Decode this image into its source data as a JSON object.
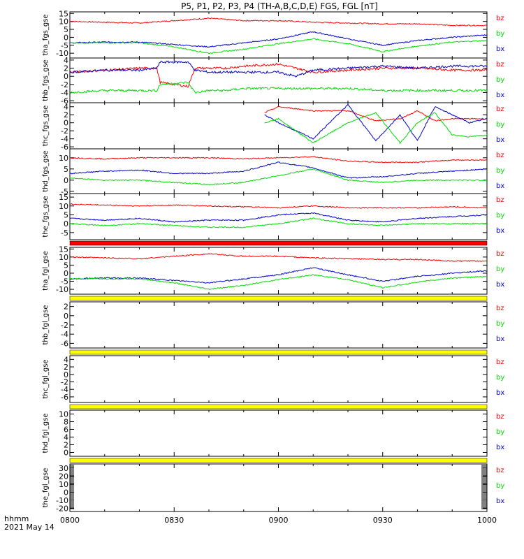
{
  "title": "P5, P1, P2, P3, P4 (TH-A,B,C,D,E) FGS, FGL [nT]",
  "time_axis": {
    "date_label": "2021 May 14",
    "unit_label": "hhmm",
    "ticks": [
      "0800",
      "0830",
      "0900",
      "0930",
      "1000"
    ],
    "range": [
      "08:00",
      "10:00"
    ]
  },
  "status_bar_colors": {
    "red": "#ff0000",
    "yellow": "#ffff00"
  },
  "colors": {
    "bz": "#ff0000",
    "by": "#00dd00",
    "bx": "#0000cc"
  },
  "chart_data": [
    {
      "type": "line",
      "ylabel": "tha_fgs_gse",
      "ylim": [
        -13,
        16
      ],
      "yticks": [
        15,
        10,
        5,
        0,
        -5,
        -10
      ],
      "legend": [
        "bz",
        "by",
        "bx"
      ],
      "status_bar_after": "",
      "x": [
        0,
        10,
        20,
        30,
        40,
        50,
        60,
        70,
        80,
        90,
        100,
        110,
        120
      ],
      "series": [
        {
          "name": "bz",
          "values": [
            10,
            9.5,
            9,
            10.5,
            12,
            10.5,
            10.5,
            9.5,
            9,
            8.5,
            8.5,
            7.5,
            7.5
          ]
        },
        {
          "name": "bx",
          "values": [
            -3.5,
            -3,
            -3,
            -4.5,
            -6,
            -3.5,
            -1,
            3.5,
            -1,
            -5,
            -2,
            0,
            1.5
          ]
        },
        {
          "name": "by",
          "values": [
            -3.5,
            -3.5,
            -3.5,
            -6,
            -10,
            -7.5,
            -4,
            -1,
            -4,
            -9,
            -5.5,
            -3,
            -2
          ]
        }
      ]
    },
    {
      "type": "line",
      "ylabel": "thb_fgs_gse",
      "ylim": [
        -6.5,
        4.5
      ],
      "yticks": [
        4,
        2,
        0,
        -2,
        -4,
        -6
      ],
      "legend": [
        "bz",
        "by",
        "bx"
      ],
      "status_bar_after": "",
      "x": [
        0,
        10,
        20,
        25,
        26,
        34,
        36,
        40,
        45,
        50,
        60,
        65,
        70,
        80,
        90,
        100,
        110,
        120
      ],
      "series": [
        {
          "name": "bz",
          "values": [
            1,
            1.5,
            2,
            2,
            -1.5,
            -2.5,
            2,
            2,
            2,
            2.5,
            3,
            2,
            1,
            1.5,
            2,
            2,
            1.5,
            1.5
          ]
        },
        {
          "name": "bx",
          "values": [
            1,
            1.5,
            1.5,
            2,
            3.5,
            3.5,
            1.5,
            1,
            1,
            1,
            1,
            0,
            1.5,
            2,
            2.5,
            2,
            2.5,
            2.5
          ]
        },
        {
          "name": "by",
          "values": [
            -4,
            -3.5,
            -3.5,
            -3.5,
            -2,
            -1.5,
            -4,
            -3.5,
            -3.5,
            -3,
            -3,
            -3,
            -3,
            -3,
            -3.5,
            -3.5,
            -3.5,
            -3.5
          ]
        }
      ]
    },
    {
      "type": "line",
      "ylabel": "thc_fgs_gse",
      "ylim": [
        -6.5,
        5
      ],
      "yticks": [
        4,
        2,
        0,
        -2,
        -4,
        -6
      ],
      "legend": [
        "bz",
        "by",
        "bx"
      ],
      "status_bar_after": "",
      "x": [
        56,
        60,
        70,
        80,
        88,
        95,
        100,
        105,
        110,
        115,
        120
      ],
      "series": [
        {
          "name": "bz",
          "values": [
            2.5,
            4,
            3,
            3,
            0.5,
            1,
            3,
            0.5,
            1,
            1,
            1
          ]
        },
        {
          "name": "bx",
          "values": [
            2,
            0,
            -4,
            4.5,
            -4.5,
            2,
            -4.5,
            4,
            2,
            0,
            1
          ]
        },
        {
          "name": "by",
          "values": [
            0,
            1,
            -5,
            0,
            2.5,
            -5,
            0,
            2.5,
            -3,
            -3.5,
            -3
          ]
        }
      ]
    },
    {
      "type": "line",
      "ylabel": "thd_fgs_gse",
      "ylim": [
        -6,
        14
      ],
      "yticks": [
        10,
        5,
        0,
        -5
      ],
      "legend": [
        "bz",
        "by",
        "bx"
      ],
      "status_bar_after": "",
      "x": [
        0,
        10,
        20,
        30,
        40,
        50,
        60,
        70,
        80,
        90,
        100,
        110,
        120
      ],
      "series": [
        {
          "name": "bz",
          "values": [
            10,
            9.5,
            10,
            10,
            10,
            9.5,
            10,
            10.5,
            8.5,
            8,
            8,
            9,
            9
          ]
        },
        {
          "name": "bx",
          "values": [
            3,
            4,
            4.5,
            3,
            3,
            4,
            8,
            5.5,
            1,
            1.5,
            3,
            4,
            5
          ]
        },
        {
          "name": "by",
          "values": [
            1,
            0,
            0,
            -1,
            -2,
            -1,
            2,
            5,
            0,
            -1,
            0,
            0,
            0
          ]
        }
      ]
    },
    {
      "type": "line",
      "ylabel": "the_fgs_gse",
      "ylim": [
        -9,
        17
      ],
      "yticks": [
        15,
        10,
        5,
        0,
        -5
      ],
      "legend": [
        "bz",
        "by",
        "bx"
      ],
      "status_bar_after": "red",
      "x": [
        0,
        10,
        20,
        30,
        40,
        50,
        60,
        70,
        80,
        90,
        100,
        110,
        120
      ],
      "series": [
        {
          "name": "bz",
          "values": [
            11,
            10.5,
            10,
            10.5,
            10,
            9.5,
            9,
            10,
            9,
            9,
            9,
            9.5,
            9
          ]
        },
        {
          "name": "bx",
          "values": [
            3,
            2,
            3,
            1,
            2,
            2,
            5,
            6,
            2,
            1,
            3,
            4,
            5
          ]
        },
        {
          "name": "by",
          "values": [
            0,
            -1,
            0,
            -1,
            -2,
            -2,
            0,
            3,
            0,
            -1,
            0,
            0,
            0
          ]
        }
      ]
    },
    {
      "type": "line",
      "ylabel": "tha_fgl_gse",
      "ylim": [
        -13,
        16
      ],
      "yticks": [
        15,
        10,
        5,
        0,
        -5,
        -10
      ],
      "legend": [
        "bz",
        "by",
        "bx"
      ],
      "status_bar_after": "yellow",
      "x": [
        0,
        10,
        20,
        30,
        40,
        50,
        60,
        70,
        80,
        90,
        100,
        110,
        120
      ],
      "series": [
        {
          "name": "bz",
          "values": [
            10,
            9.5,
            9,
            10.5,
            12,
            10.5,
            10.5,
            9.5,
            9,
            8.5,
            8.5,
            7.5,
            7.5
          ]
        },
        {
          "name": "bx",
          "values": [
            -3.5,
            -3,
            -3,
            -4.5,
            -6,
            -3.5,
            -1,
            3.5,
            -1,
            -5,
            -2,
            0,
            1.5
          ]
        },
        {
          "name": "by",
          "values": [
            -3.5,
            -3.5,
            -3.5,
            -6,
            -10,
            -7.5,
            -4,
            -1,
            -4,
            -9,
            -5.5,
            -3,
            -2
          ]
        }
      ]
    },
    {
      "type": "line",
      "ylabel": "thb_fgl_gse",
      "ylim": [
        -7,
        3
      ],
      "yticks": [
        2,
        0,
        -2,
        -4,
        -6
      ],
      "legend": [
        "bz",
        "by",
        "bx"
      ],
      "status_bar_after": "yellow",
      "x": [],
      "series": []
    },
    {
      "type": "line",
      "ylabel": "thc_fgl_gse",
      "ylim": [
        -7.5,
        5
      ],
      "yticks": [
        4,
        2,
        0,
        -2,
        -4,
        -6
      ],
      "legend": [
        "bz",
        "by",
        "bx"
      ],
      "status_bar_after": "yellow",
      "x": [],
      "series": []
    },
    {
      "type": "line",
      "ylabel": "thd_fgl_gse",
      "ylim": [
        -1,
        11
      ],
      "yticks": [
        10,
        8,
        6,
        4,
        2,
        0
      ],
      "legend": [
        "bz",
        "by",
        "bx"
      ],
      "status_bar_after": "yellow",
      "x": [],
      "series": []
    },
    {
      "type": "line",
      "ylabel": "the_fgl_gse",
      "ylim": [
        -24,
        35
      ],
      "yticks": [
        30,
        20,
        10,
        0,
        -10,
        -20
      ],
      "legend": [
        "bz",
        "by",
        "bx"
      ],
      "status_bar_after": "",
      "x": [],
      "series": []
    }
  ]
}
